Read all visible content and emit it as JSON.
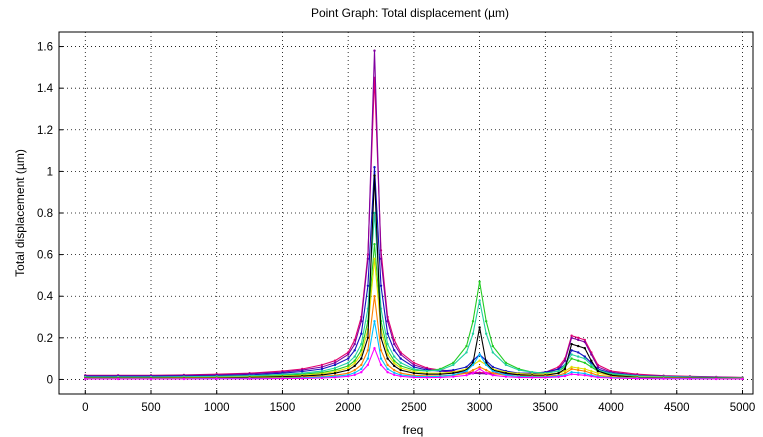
{
  "chart_data": {
    "type": "line",
    "title": "Point Graph: Total displacement (µm)",
    "xlabel": "freq",
    "ylabel": "Total displacement (µm)",
    "xlim": [
      -200,
      5080
    ],
    "ylim": [
      -0.07,
      1.67
    ],
    "xticks": [
      0,
      500,
      1000,
      1500,
      2000,
      2500,
      3000,
      3500,
      4000,
      4500,
      5000
    ],
    "yticks": [
      0,
      0.2,
      0.4,
      0.6,
      0.8,
      1,
      1.2,
      1.4,
      1.6
    ],
    "grid": true,
    "legend": "none",
    "x": [
      0,
      250,
      500,
      750,
      1000,
      1250,
      1500,
      1650,
      1800,
      1900,
      2000,
      2050,
      2100,
      2150,
      2200,
      2250,
      2300,
      2350,
      2400,
      2500,
      2600,
      2700,
      2800,
      2900,
      2950,
      3000,
      3050,
      3100,
      3200,
      3300,
      3400,
      3500,
      3600,
      3650,
      3700,
      3750,
      3800,
      3850,
      3900,
      4000,
      4200,
      4400,
      4600,
      4800,
      5000
    ],
    "series": [
      {
        "color": "#e00070",
        "values": [
          0.02,
          0.02,
          0.02,
          0.022,
          0.025,
          0.03,
          0.04,
          0.05,
          0.07,
          0.09,
          0.13,
          0.19,
          0.3,
          0.6,
          1.45,
          0.62,
          0.3,
          0.19,
          0.13,
          0.08,
          0.055,
          0.045,
          0.04,
          0.035,
          0.034,
          0.033,
          0.032,
          0.031,
          0.03,
          0.028,
          0.03,
          0.035,
          0.06,
          0.1,
          0.21,
          0.2,
          0.19,
          0.13,
          0.07,
          0.04,
          0.025,
          0.018,
          0.015,
          0.012,
          0.01
        ]
      },
      {
        "color": "#8000a0",
        "values": [
          0.018,
          0.018,
          0.018,
          0.02,
          0.022,
          0.027,
          0.035,
          0.045,
          0.06,
          0.08,
          0.12,
          0.17,
          0.28,
          0.58,
          1.58,
          0.58,
          0.28,
          0.17,
          0.12,
          0.07,
          0.05,
          0.04,
          0.035,
          0.03,
          0.029,
          0.028,
          0.027,
          0.026,
          0.025,
          0.024,
          0.026,
          0.03,
          0.05,
          0.09,
          0.2,
          0.19,
          0.18,
          0.12,
          0.06,
          0.035,
          0.02,
          0.016,
          0.013,
          0.011,
          0.009
        ]
      },
      {
        "color": "#1010c0",
        "values": [
          0.015,
          0.015,
          0.015,
          0.016,
          0.018,
          0.022,
          0.03,
          0.038,
          0.05,
          0.07,
          0.1,
          0.14,
          0.22,
          0.45,
          1.02,
          0.45,
          0.22,
          0.14,
          0.1,
          0.06,
          0.045,
          0.04,
          0.045,
          0.06,
          0.09,
          0.12,
          0.09,
          0.06,
          0.04,
          0.03,
          0.03,
          0.035,
          0.05,
          0.07,
          0.14,
          0.13,
          0.11,
          0.08,
          0.05,
          0.03,
          0.018,
          0.014,
          0.011,
          0.009,
          0.008
        ]
      },
      {
        "color": "#22cc22",
        "values": [
          0.01,
          0.01,
          0.01,
          0.011,
          0.012,
          0.015,
          0.02,
          0.025,
          0.033,
          0.045,
          0.065,
          0.09,
          0.14,
          0.28,
          0.65,
          0.28,
          0.14,
          0.09,
          0.065,
          0.045,
          0.04,
          0.05,
          0.08,
          0.16,
          0.28,
          0.47,
          0.28,
          0.16,
          0.08,
          0.05,
          0.035,
          0.03,
          0.04,
          0.06,
          0.1,
          0.09,
          0.08,
          0.06,
          0.04,
          0.025,
          0.015,
          0.012,
          0.01,
          0.008,
          0.007
        ]
      },
      {
        "color": "#20d0a0",
        "values": [
          0.012,
          0.012,
          0.012,
          0.013,
          0.015,
          0.018,
          0.024,
          0.03,
          0.04,
          0.055,
          0.08,
          0.11,
          0.17,
          0.34,
          0.8,
          0.34,
          0.17,
          0.11,
          0.08,
          0.05,
          0.04,
          0.045,
          0.07,
          0.13,
          0.22,
          0.38,
          0.22,
          0.13,
          0.07,
          0.045,
          0.035,
          0.03,
          0.04,
          0.07,
          0.12,
          0.11,
          0.1,
          0.07,
          0.045,
          0.028,
          0.017,
          0.013,
          0.011,
          0.009,
          0.008
        ]
      },
      {
        "color": "#e0e000",
        "values": [
          0.008,
          0.008,
          0.008,
          0.009,
          0.01,
          0.012,
          0.016,
          0.02,
          0.027,
          0.037,
          0.055,
          0.078,
          0.12,
          0.24,
          0.58,
          0.24,
          0.12,
          0.078,
          0.055,
          0.037,
          0.03,
          0.03,
          0.035,
          0.05,
          0.07,
          0.09,
          0.07,
          0.05,
          0.035,
          0.028,
          0.025,
          0.025,
          0.03,
          0.04,
          0.06,
          0.055,
          0.05,
          0.04,
          0.03,
          0.02,
          0.012,
          0.01,
          0.008,
          0.007,
          0.006
        ]
      },
      {
        "color": "#000000",
        "values": [
          0.006,
          0.006,
          0.006,
          0.007,
          0.008,
          0.01,
          0.013,
          0.016,
          0.022,
          0.03,
          0.045,
          0.065,
          0.1,
          0.2,
          0.98,
          0.2,
          0.1,
          0.065,
          0.045,
          0.03,
          0.025,
          0.025,
          0.03,
          0.045,
          0.08,
          0.25,
          0.08,
          0.045,
          0.03,
          0.022,
          0.02,
          0.02,
          0.03,
          0.05,
          0.17,
          0.16,
          0.15,
          0.09,
          0.04,
          0.02,
          0.01,
          0.008,
          0.007,
          0.006,
          0.005
        ]
      },
      {
        "color": "#ff8000",
        "values": [
          0.004,
          0.004,
          0.004,
          0.005,
          0.006,
          0.007,
          0.009,
          0.011,
          0.015,
          0.02,
          0.03,
          0.045,
          0.07,
          0.14,
          0.4,
          0.14,
          0.07,
          0.045,
          0.03,
          0.02,
          0.017,
          0.017,
          0.02,
          0.03,
          0.045,
          0.06,
          0.045,
          0.03,
          0.02,
          0.016,
          0.015,
          0.016,
          0.02,
          0.03,
          0.05,
          0.045,
          0.04,
          0.03,
          0.02,
          0.013,
          0.008,
          0.006,
          0.005,
          0.004,
          0.004
        ]
      },
      {
        "color": "#00c0ff",
        "values": [
          0.003,
          0.003,
          0.003,
          0.003,
          0.004,
          0.005,
          0.006,
          0.008,
          0.011,
          0.015,
          0.022,
          0.032,
          0.05,
          0.1,
          0.28,
          0.1,
          0.05,
          0.032,
          0.022,
          0.015,
          0.013,
          0.015,
          0.022,
          0.04,
          0.07,
          0.12,
          0.07,
          0.04,
          0.022,
          0.014,
          0.012,
          0.012,
          0.016,
          0.022,
          0.035,
          0.032,
          0.028,
          0.02,
          0.014,
          0.009,
          0.006,
          0.005,
          0.004,
          0.003,
          0.003
        ]
      },
      {
        "color": "#ff00ff",
        "values": [
          0.002,
          0.002,
          0.002,
          0.002,
          0.003,
          0.003,
          0.004,
          0.005,
          0.007,
          0.01,
          0.015,
          0.022,
          0.035,
          0.07,
          0.15,
          0.07,
          0.035,
          0.022,
          0.015,
          0.01,
          0.009,
          0.01,
          0.013,
          0.02,
          0.03,
          0.05,
          0.03,
          0.02,
          0.013,
          0.01,
          0.009,
          0.009,
          0.012,
          0.016,
          0.025,
          0.023,
          0.02,
          0.015,
          0.01,
          0.007,
          0.004,
          0.003,
          0.003,
          0.002,
          0.002
        ]
      }
    ]
  }
}
